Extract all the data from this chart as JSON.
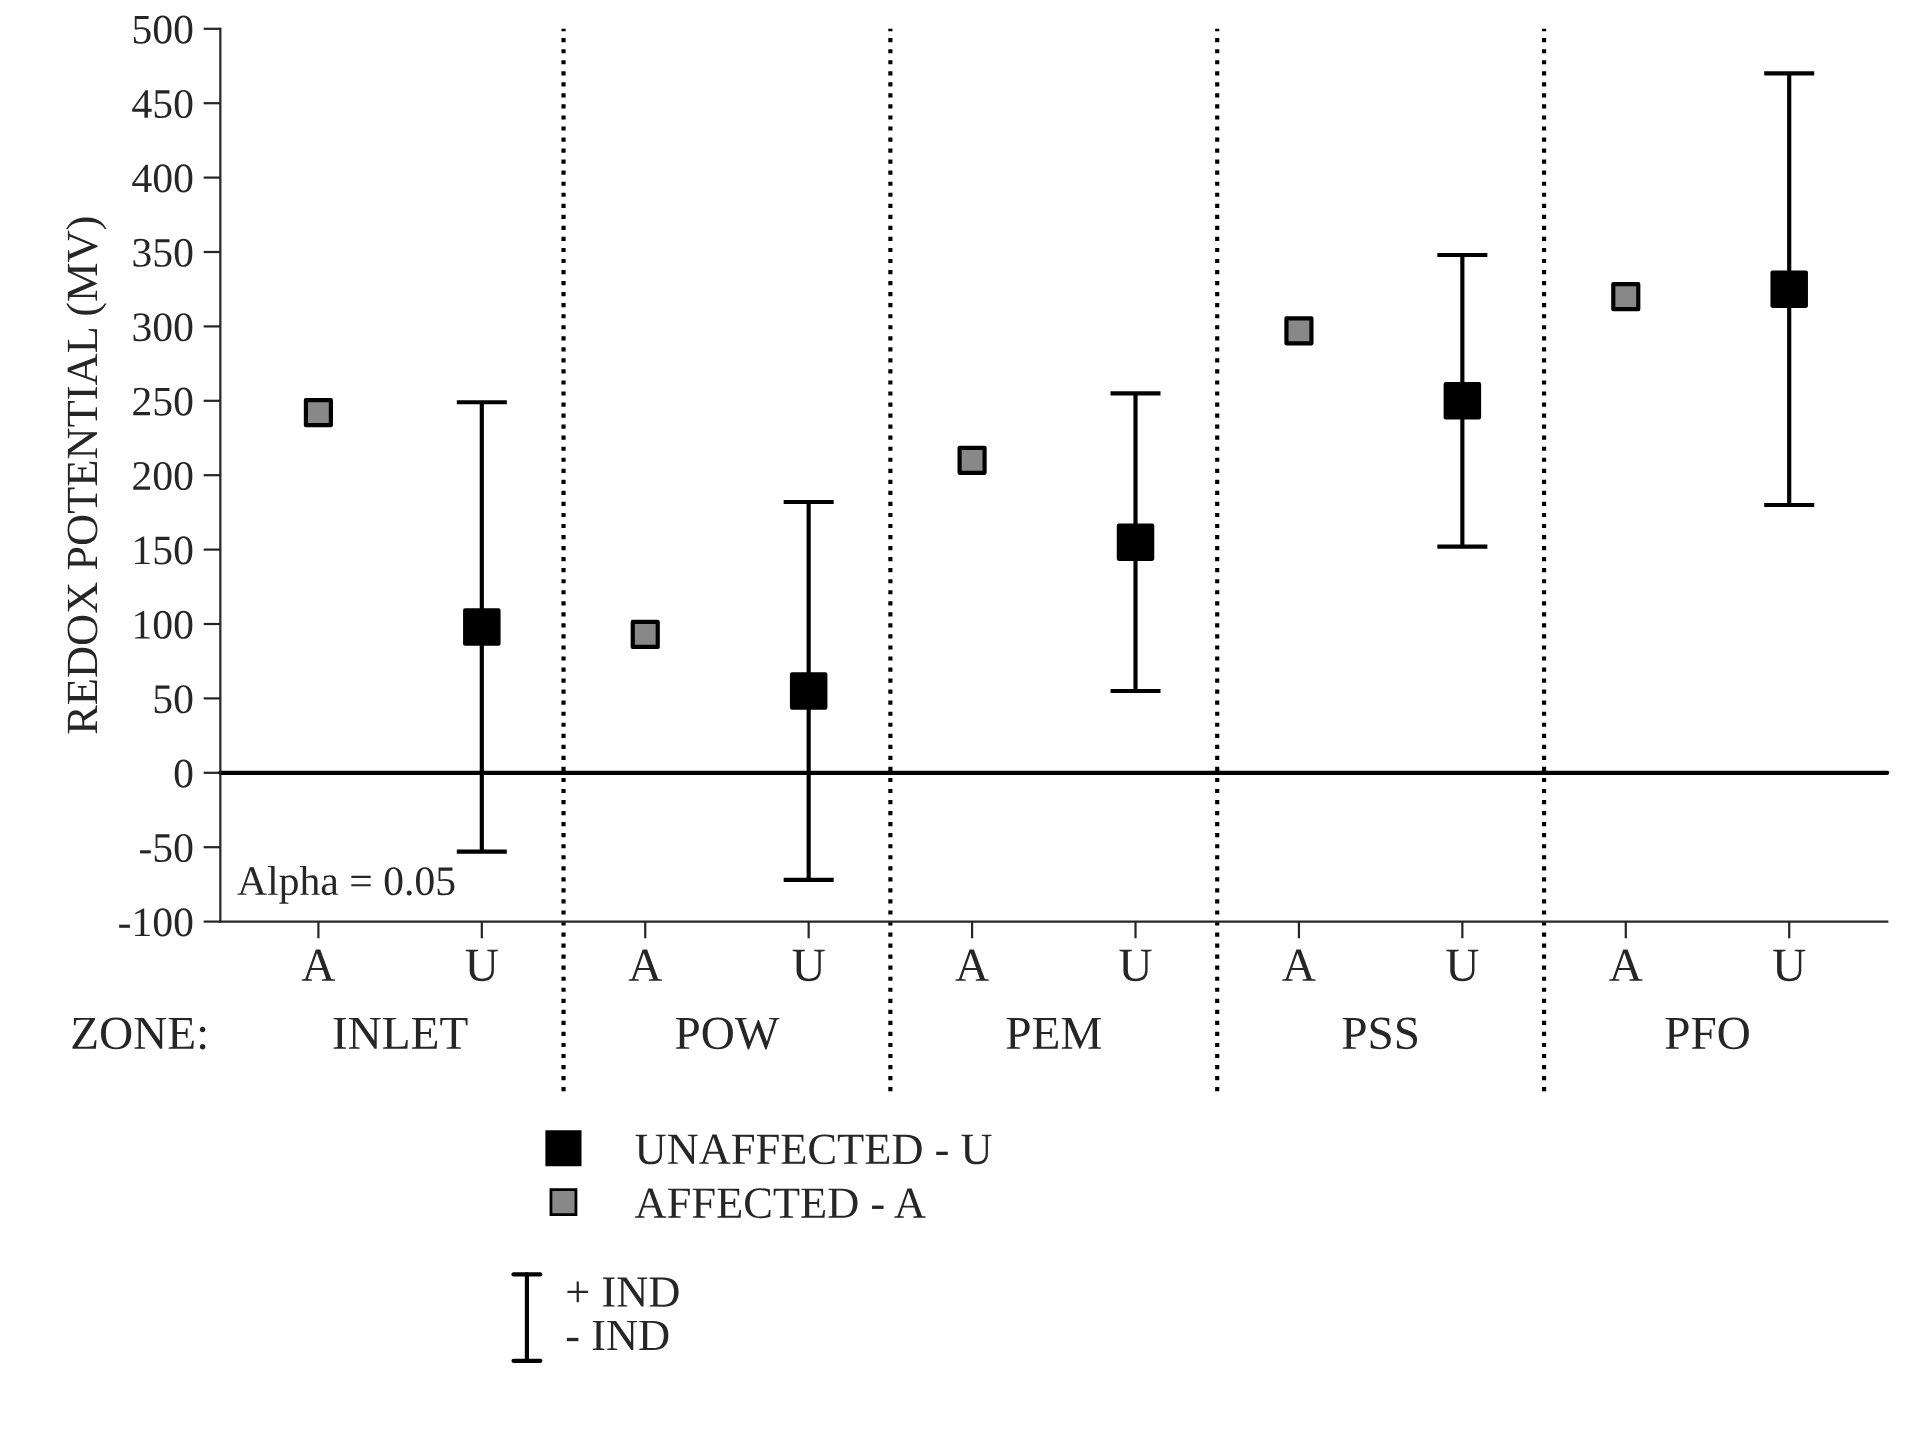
{
  "chart_data": {
    "type": "scatter",
    "ylabel": "REDOX POTENTIAL (MV)",
    "xlabel": "ZONE:",
    "categories": [
      "A",
      "U",
      "A",
      "U",
      "A",
      "U",
      "A",
      "U",
      "A",
      "U"
    ],
    "series": [
      {
        "name": "UNAFFECTED - U",
        "color": "#000000",
        "values": [
          null,
          98,
          null,
          55,
          null,
          155,
          null,
          250,
          null,
          325
        ],
        "errors": [
          null,
          151,
          null,
          127,
          null,
          100,
          null,
          98,
          null,
          145
        ]
      },
      {
        "name": "AFFECTED - A",
        "color": "#888888",
        "values": [
          242,
          null,
          93,
          null,
          210,
          null,
          297,
          null,
          320,
          null
        ]
      }
    ],
    "ylim": [
      -100,
      500
    ],
    "yticks": [
      -100,
      -50,
      0,
      50,
      100,
      150,
      200,
      250,
      300,
      350,
      400,
      450,
      500
    ],
    "ref_lines": [
      {
        "axis": "y",
        "value": 0,
        "color": "#000000",
        "line_style": "solid"
      }
    ],
    "annotations": [
      "Alpha = 0.05",
      "INLET",
      "POW",
      "PEM",
      "PSS",
      "PFO",
      "+ IND\n- IND"
    ],
    "marker": "square",
    "grid": false,
    "legend": "bottom"
  }
}
